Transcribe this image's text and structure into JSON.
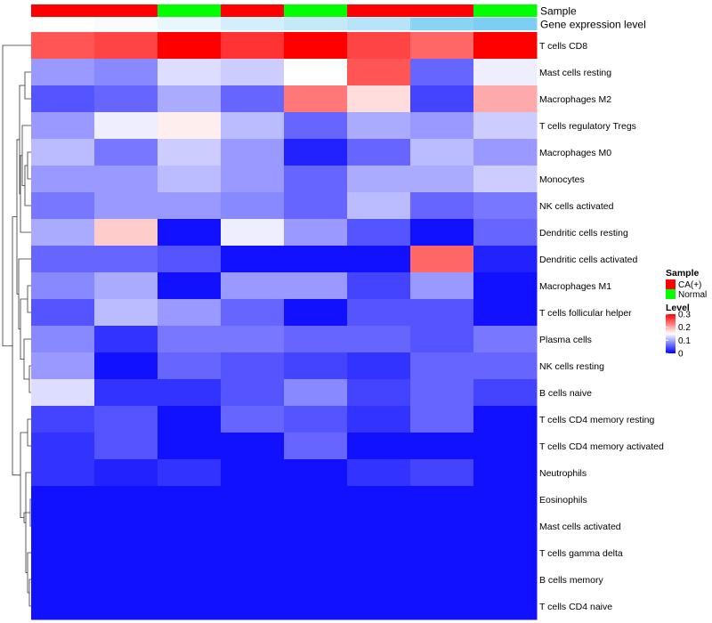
{
  "chart_data": {
    "type": "heatmap",
    "tracks": [
      {
        "label": "Sample",
        "values": [
          "CA(+)",
          "CA(+)",
          "Normal",
          "CA(+)",
          "Normal",
          "CA(+)",
          "CA(+)",
          "Normal"
        ]
      },
      {
        "label": "Gene expression level",
        "values": [
          0.0,
          0.05,
          0.15,
          0.3,
          0.4,
          0.5,
          0.8,
          0.9
        ]
      }
    ],
    "expression_track_colors": {
      "low": "#ffffff",
      "high": "#6ec8f0"
    },
    "sample_colors": {
      "CA(+)": "#ff0000",
      "Normal": "#00ff00"
    },
    "rows": [
      "T cells CD8",
      "Mast cells resting",
      "Macrophages M2",
      "T cells regulatory  Tregs",
      "Macrophages M0",
      "Monocytes",
      "NK cells activated",
      "Dendritic cells resting",
      "Dendritic cells activated",
      "Macrophages M1",
      "T cells follicular helper",
      "Plasma cells",
      "NK cells resting",
      "B cells naive",
      "T cells CD4 memory resting",
      "T cells CD4 memory activated",
      "Neutrophils",
      "Eosinophils",
      "Mast cells activated",
      "T cells gamma delta",
      "B cells memory",
      "T cells CD4 naive"
    ],
    "values": [
      [
        0.25,
        0.26,
        0.3,
        0.27,
        0.3,
        0.26,
        0.24,
        0.3
      ],
      [
        0.09,
        0.08,
        0.13,
        0.12,
        0.15,
        0.25,
        0.06,
        0.14
      ],
      [
        0.05,
        0.06,
        0.1,
        0.06,
        0.23,
        0.17,
        0.04,
        0.2
      ],
      [
        0.09,
        0.14,
        0.16,
        0.11,
        0.06,
        0.1,
        0.09,
        0.12
      ],
      [
        0.11,
        0.07,
        0.12,
        0.09,
        0.02,
        0.06,
        0.11,
        0.09
      ],
      [
        0.09,
        0.09,
        0.11,
        0.09,
        0.06,
        0.1,
        0.1,
        0.12
      ],
      [
        0.07,
        0.09,
        0.09,
        0.08,
        0.06,
        0.11,
        0.06,
        0.07
      ],
      [
        0.1,
        0.18,
        0.01,
        0.14,
        0.09,
        0.05,
        0.01,
        0.06
      ],
      [
        0.06,
        0.06,
        0.05,
        0.01,
        0.01,
        0.01,
        0.24,
        0.02
      ],
      [
        0.08,
        0.1,
        0.01,
        0.09,
        0.09,
        0.04,
        0.09,
        0.01
      ],
      [
        0.05,
        0.11,
        0.09,
        0.06,
        0.01,
        0.05,
        0.05,
        0.01
      ],
      [
        0.08,
        0.03,
        0.07,
        0.07,
        0.06,
        0.06,
        0.05,
        0.07
      ],
      [
        0.09,
        0.01,
        0.06,
        0.05,
        0.04,
        0.03,
        0.06,
        0.06
      ],
      [
        0.13,
        0.03,
        0.03,
        0.05,
        0.08,
        0.04,
        0.06,
        0.04
      ],
      [
        0.04,
        0.05,
        0.01,
        0.06,
        0.05,
        0.03,
        0.06,
        0.01
      ],
      [
        0.03,
        0.05,
        0.01,
        0.01,
        0.06,
        0.01,
        0.01,
        0.01
      ],
      [
        0.03,
        0.02,
        0.03,
        0.01,
        0.01,
        0.03,
        0.04,
        0.01
      ],
      [
        0.01,
        0.01,
        0.01,
        0.01,
        0.01,
        0.01,
        0.01,
        0.01
      ],
      [
        0.01,
        0.01,
        0.01,
        0.01,
        0.01,
        0.01,
        0.01,
        0.01
      ],
      [
        0.01,
        0.01,
        0.01,
        0.01,
        0.01,
        0.01,
        0.01,
        0.01
      ],
      [
        0.01,
        0.01,
        0.01,
        0.01,
        0.01,
        0.01,
        0.01,
        0.01
      ],
      [
        0.01,
        0.01,
        0.01,
        0.01,
        0.01,
        0.01,
        0.01,
        0.01
      ]
    ],
    "color_scale": {
      "min": 0,
      "mid": 0.15,
      "max": 0.3,
      "low": "#0000ff",
      "middle": "#ffffff",
      "high": "#ff0000"
    },
    "legend": {
      "sample_title": "Sample",
      "sample_entries": [
        "CA(+)",
        "Normal"
      ],
      "level_title": "Level",
      "level_ticks": [
        "0.3",
        "0.2",
        "0.1",
        "0"
      ],
      "level_tick_values": [
        0.3,
        0.2,
        0.1,
        0
      ]
    }
  }
}
